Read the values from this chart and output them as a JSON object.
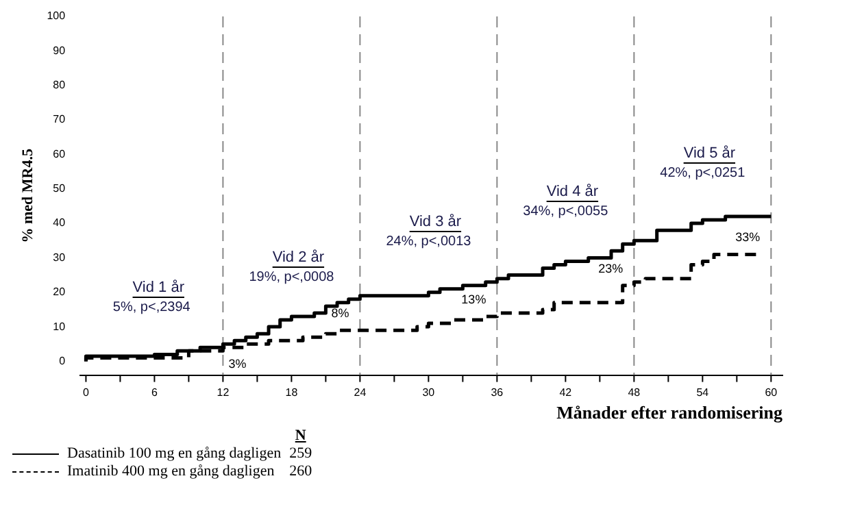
{
  "chart_data": {
    "type": "step",
    "xlabel": "Månader efter randomisering",
    "ylabel": "% med MR4.5",
    "legend": "bottom left",
    "legend_title": "N",
    "grid": false,
    "marker": "none",
    "xlim": [
      -0.5,
      61
    ],
    "ylim": [
      -4,
      100
    ],
    "xticks": [
      0,
      {
        "value": 3,
        "label": null
      },
      6,
      {
        "value": 9,
        "label": null
      },
      12,
      {
        "value": 15,
        "label": null
      },
      18,
      {
        "value": 21,
        "label": null
      },
      24,
      {
        "value": 27,
        "label": null
      },
      30,
      {
        "value": 33,
        "label": null
      },
      36,
      {
        "value": 39,
        "label": null
      },
      42,
      {
        "value": 45,
        "label": null
      },
      48,
      {
        "value": 51,
        "label": null
      },
      54,
      {
        "value": 57,
        "label": null
      },
      60
    ],
    "yticks": [
      0,
      10,
      20,
      30,
      40,
      50,
      60,
      70,
      80,
      90,
      100
    ],
    "series": [
      {
        "name": "Dasatinib 100 mg en gång dagligen",
        "color": "#000000",
        "line_style": "solid",
        "x": [
          0,
          6,
          8,
          10,
          12,
          13,
          14,
          15,
          16,
          17,
          18,
          20,
          21,
          22,
          23,
          24,
          25,
          30,
          31,
          33,
          35,
          36,
          37,
          40,
          41,
          42,
          44,
          46,
          47,
          48,
          50,
          53,
          54,
          56,
          58,
          60
        ],
        "values": [
          0,
          1.5,
          2,
          3,
          4,
          5,
          6,
          7,
          8,
          10,
          12,
          13,
          14,
          16,
          17,
          18,
          19,
          19,
          20,
          21,
          22,
          23,
          24,
          25,
          27,
          28,
          29,
          30,
          32,
          34,
          35,
          38,
          40,
          41,
          42,
          42
        ]
      },
      {
        "name": "Imatinib 400 mg en gång dagligen",
        "color": "#000000",
        "line_style": "dashed",
        "x": [
          0,
          9,
          12,
          14,
          16,
          19,
          21,
          22,
          24,
          29,
          30,
          32,
          35,
          36,
          40,
          41,
          47,
          48,
          49,
          53,
          54,
          55,
          58,
          59
        ],
        "values": [
          0,
          1,
          3,
          4,
          5,
          6,
          7,
          8,
          9,
          9,
          10,
          11,
          12,
          13,
          14,
          15,
          17,
          22,
          23,
          24,
          28,
          29,
          31,
          31
        ]
      }
    ],
    "annotations": [
      "Vid 1 år",
      "5%, p<,2394",
      "Vid 2 år",
      "19%, p<,0008",
      "Vid 3 år",
      "24%, p<,0013",
      "Vid 4 år",
      "34%, p<,0055",
      "Vid 5 år",
      "42%, p<,0251",
      "3%",
      "8%",
      "13%",
      "23%",
      "33%",
      "259",
      "260"
    ],
    "ref_lines": [
      {
        "axis": "x",
        "value": 12,
        "color": "#888888",
        "line_style": "dashed"
      },
      {
        "axis": "x",
        "value": 24,
        "color": "#888888",
        "line_style": "dashed"
      },
      {
        "axis": "x",
        "value": 36,
        "color": "#888888",
        "line_style": "dashed"
      },
      {
        "axis": "x",
        "value": 48,
        "color": "#888888",
        "line_style": "dashed"
      },
      {
        "axis": "x",
        "value": 60,
        "color": "#888888",
        "line_style": "dashed"
      }
    ]
  }
}
